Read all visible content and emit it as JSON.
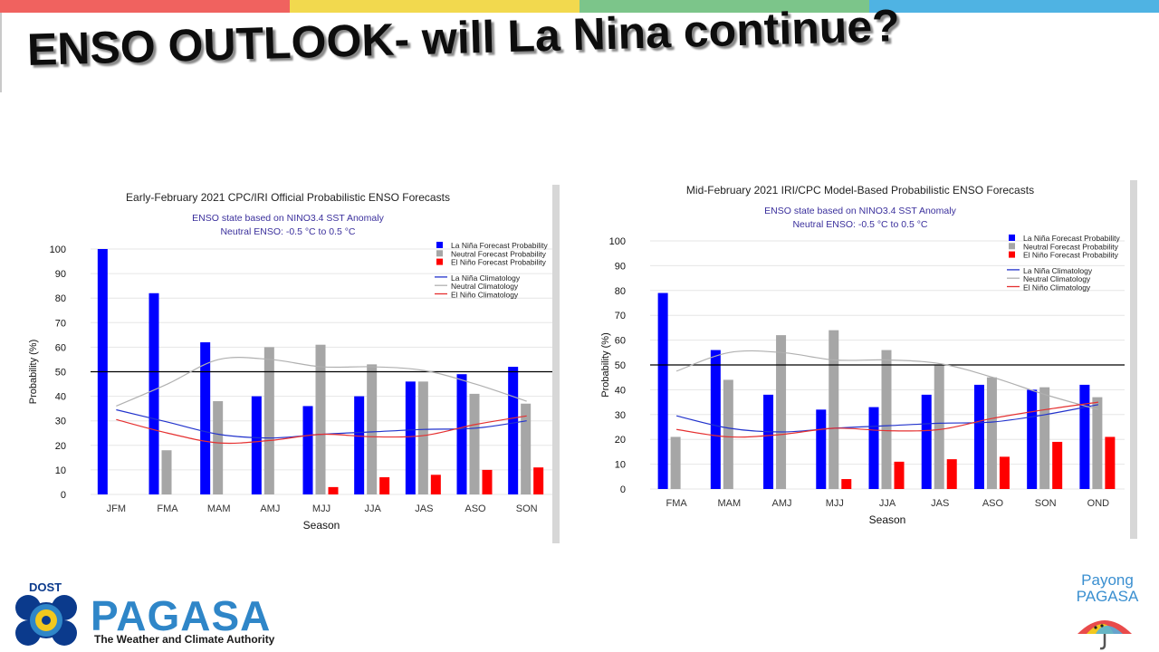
{
  "slide": {
    "title": "ENSO OUTLOOK- will La Nina continue?",
    "top_bar_colors": [
      "#f0625f",
      "#f2d94e",
      "#7cc58a",
      "#4fb3e3"
    ]
  },
  "colors": {
    "la_nina": "#0000ff",
    "neutral": "#a6a6a6",
    "el_nino": "#ff0000",
    "la_nina_clim": "#2233cc",
    "neutral_clim": "#b0b0b0",
    "el_nino_clim": "#e53030",
    "threshold_line": "#000000",
    "grid": "#e6e6e6"
  },
  "chart_data": [
    {
      "type": "bar",
      "title": "Early-February 2021 CPC/IRI Official Probabilistic ENSO Forecasts",
      "subtitle_lines": [
        "ENSO state based on NINO3.4 SST Anomaly",
        "Neutral ENSO: -0.5 °C to 0.5 °C"
      ],
      "xlabel": "Season",
      "ylabel": "Probability (%)",
      "ylim": [
        0,
        100
      ],
      "yticks": [
        0,
        10,
        20,
        30,
        40,
        50,
        60,
        70,
        80,
        90,
        100
      ],
      "reference_line": 50,
      "grid": true,
      "legend_position": "top-right",
      "categories": [
        "JFM",
        "FMA",
        "MAM",
        "AMJ",
        "MJJ",
        "JJA",
        "JAS",
        "ASO",
        "SON"
      ],
      "series": [
        {
          "name": "La Niña Forecast Probability",
          "kind": "bar",
          "color_key": "la_nina",
          "values": [
            100,
            82,
            62,
            40,
            36,
            40,
            46,
            49,
            52
          ]
        },
        {
          "name": "Neutral Forecast Probability",
          "kind": "bar",
          "color_key": "neutral",
          "values": [
            0,
            18,
            38,
            60,
            61,
            53,
            46,
            41,
            37
          ]
        },
        {
          "name": "El Niño Forecast Probability",
          "kind": "bar",
          "color_key": "el_nino",
          "values": [
            0,
            0,
            0,
            0,
            3,
            7,
            8,
            10,
            11
          ]
        },
        {
          "name": "La Niña Climatology",
          "kind": "line",
          "color_key": "la_nina_clim",
          "values": [
            34.5,
            29.5,
            24.5,
            23,
            24.5,
            25.5,
            26.5,
            27,
            30
          ]
        },
        {
          "name": "Neutral Climatology",
          "kind": "line",
          "color_key": "neutral_clim",
          "values": [
            36,
            45,
            55,
            55,
            52,
            52,
            50.5,
            45,
            38
          ]
        },
        {
          "name": "El Niño Climatology",
          "kind": "line",
          "color_key": "el_nino_clim",
          "values": [
            30.5,
            25,
            21,
            22,
            24.5,
            23.5,
            24,
            28.5,
            32
          ]
        }
      ]
    },
    {
      "type": "bar",
      "title": "Mid-February 2021 IRI/CPC Model-Based Probabilistic ENSO Forecasts",
      "subtitle_lines": [
        "ENSO state based on NINO3.4 SST Anomaly",
        "Neutral ENSO: -0.5 °C to 0.5 °C"
      ],
      "xlabel": "Season",
      "ylabel": "Probability (%)",
      "ylim": [
        0,
        100
      ],
      "yticks": [
        0,
        10,
        20,
        30,
        40,
        50,
        60,
        70,
        80,
        90,
        100
      ],
      "reference_line": 50,
      "grid": true,
      "legend_position": "top-right",
      "categories": [
        "FMA",
        "MAM",
        "AMJ",
        "MJJ",
        "JJA",
        "JAS",
        "ASO",
        "SON",
        "OND"
      ],
      "series": [
        {
          "name": "La Niña Forecast Probability",
          "kind": "bar",
          "color_key": "la_nina",
          "values": [
            79,
            56,
            38,
            32,
            33,
            38,
            42,
            40,
            42
          ]
        },
        {
          "name": "Neutral Forecast Probability",
          "kind": "bar",
          "color_key": "neutral",
          "values": [
            21,
            44,
            62,
            64,
            56,
            50,
            45,
            41,
            37
          ]
        },
        {
          "name": "El Niño Forecast Probability",
          "kind": "bar",
          "color_key": "el_nino",
          "values": [
            0,
            0,
            0,
            4,
            11,
            12,
            13,
            19,
            21
          ]
        },
        {
          "name": "La Niña Climatology",
          "kind": "line",
          "color_key": "la_nina_clim",
          "values": [
            29.5,
            24.5,
            23,
            24.5,
            25.5,
            26.5,
            27,
            30,
            34
          ]
        },
        {
          "name": "Neutral Climatology",
          "kind": "line",
          "color_key": "neutral_clim",
          "values": [
            47.5,
            55,
            55,
            52,
            52,
            50.5,
            45,
            38,
            32
          ]
        },
        {
          "name": "El Niño Climatology",
          "kind": "line",
          "color_key": "el_nino_clim",
          "values": [
            24,
            21,
            22,
            24.5,
            23.5,
            24,
            28.5,
            32,
            35
          ]
        }
      ]
    }
  ],
  "footer": {
    "dost_label": "DOST",
    "pagasa_word": "PAGASA",
    "pagasa_tagline": "The Weather and Climate Authority",
    "payong_line1": "Payong",
    "payong_line2": "PAGASA",
    "emblem_icon": "pagasa-emblem-icon",
    "umbrella_icon": "payong-umbrella-icon"
  }
}
